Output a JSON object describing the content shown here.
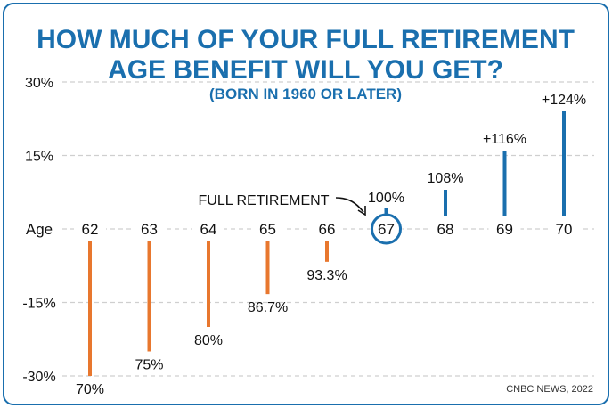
{
  "chart_data": {
    "type": "bar",
    "title_line1": "HOW MUCH OF YOUR FULL RETIREMENT",
    "title_line2": "AGE BENEFIT WILL YOU GET?",
    "subtitle": "(BORN IN 1960 OR LATER)",
    "category_axis_label": "Age",
    "categories": [
      "62",
      "63",
      "64",
      "65",
      "66",
      "67",
      "68",
      "69",
      "70"
    ],
    "values": [
      -30,
      -25,
      -20,
      -13.3,
      -6.7,
      0,
      8,
      16,
      24
    ],
    "labels": [
      "70%",
      "75%",
      "80%",
      "86.7%",
      "93.3%",
      "100%",
      "108%",
      "+116%",
      "+124%"
    ],
    "yticks": [
      {
        "value": 30,
        "label": "30%"
      },
      {
        "value": 15,
        "label": "15%"
      },
      {
        "value": -15,
        "label": "-15%"
      },
      {
        "value": -30,
        "label": "-30%"
      }
    ],
    "ylim": [
      -30,
      30
    ],
    "grid": true,
    "full_retirement_age": "67",
    "annotation": "FULL RETIREMENT",
    "source": "CNBC NEWS, 2022",
    "colors": {
      "positive": "#1a6fae",
      "negative": "#e8772e",
      "title": "#1a6fae",
      "border": "#1a6fae"
    }
  }
}
